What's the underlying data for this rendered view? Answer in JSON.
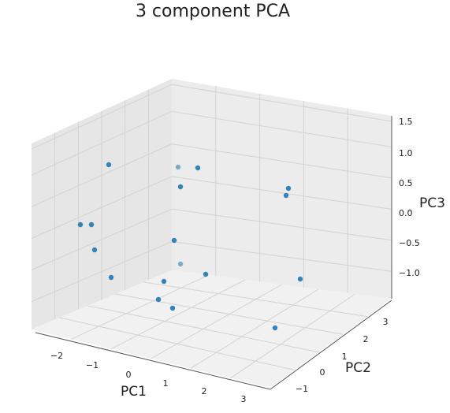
{
  "chart_data": {
    "type": "scatter",
    "projection": "3d",
    "title": "3 component PCA",
    "xlabel": "PC1",
    "ylabel": "PC2",
    "zlabel": "PC3",
    "x_ticks": [
      "−2",
      "−1",
      "0",
      "1",
      "2",
      "3"
    ],
    "y_ticks": [
      "−1",
      "0",
      "1",
      "2",
      "3"
    ],
    "z_ticks": [
      "−1.0",
      "−0.5",
      "0.0",
      "0.5",
      "1.0",
      "1.5"
    ],
    "xlim": [
      -2.5,
      3.3
    ],
    "ylim": [
      -1.6,
      3.6
    ],
    "zlim": [
      -1.5,
      1.6
    ],
    "grid": true,
    "marker_color": "#1f77b4",
    "points": [
      {
        "x": -1.64,
        "y": 0.46,
        "z": 1.11
      },
      {
        "x": -1.49,
        "y": -0.87,
        "z": 0.34
      },
      {
        "x": -1.97,
        "y": -0.68,
        "z": 0.34
      },
      {
        "x": -1.22,
        "y": -1.11,
        "z": -0.08
      },
      {
        "x": -0.64,
        "y": -1.41,
        "z": -0.28
      },
      {
        "x": -0.06,
        "y": -1.04,
        "z": -0.32
      },
      {
        "x": 0.31,
        "y": -1.06,
        "z": -0.52
      },
      {
        "x": 0.21,
        "y": -0.83,
        "z": -0.28
      },
      {
        "x": -0.28,
        "y": 0.44,
        "z": 1.01
      },
      {
        "x": 0.19,
        "y": 0.94,
        "z": 0.88
      },
      {
        "x": 0.19,
        "y": 1.07,
        "z": 0.59
      },
      {
        "x": 1.41,
        "y": -0.08,
        "z": -0.42
      },
      {
        "x": 0.02,
        "y": 0.62,
        "z": -0.31
      },
      {
        "x": -0.37,
        "y": 0.32,
        "z": -0.09
      },
      {
        "x": 3.08,
        "y": 0.88,
        "z": 1.07
      },
      {
        "x": 3.14,
        "y": 1.06,
        "z": 1.09
      },
      {
        "x": 2.74,
        "y": 2.07,
        "z": -0.41
      },
      {
        "x": 2.08,
        "y": 1.11,
        "z": -1.47
      }
    ]
  }
}
